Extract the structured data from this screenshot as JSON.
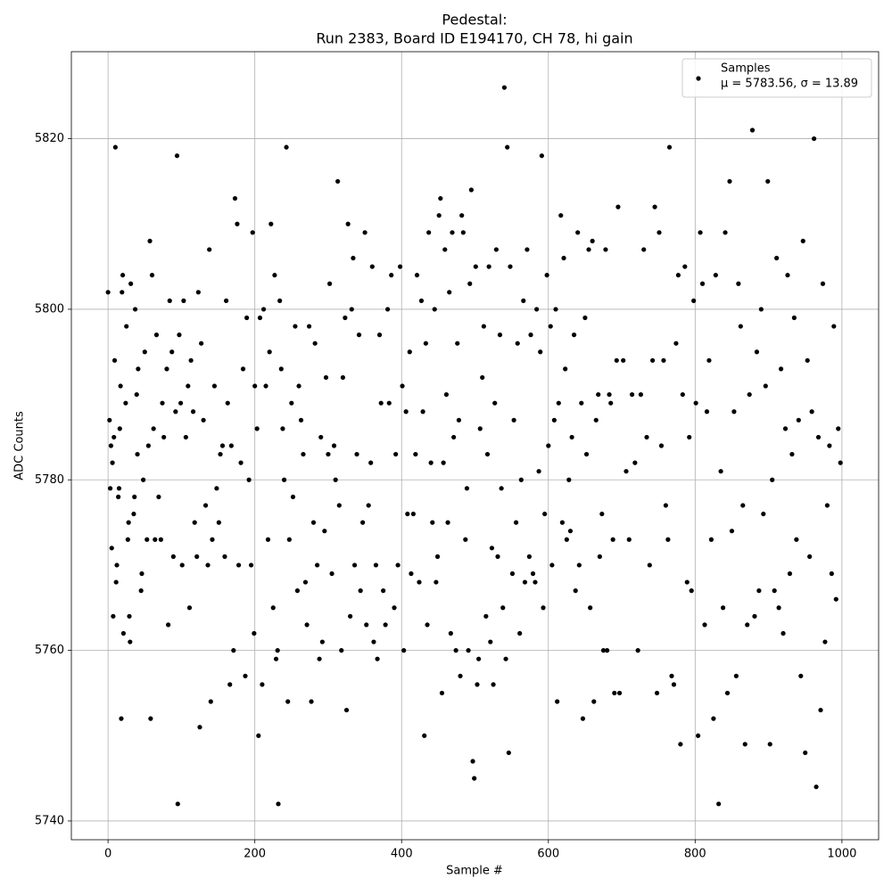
{
  "chart_data": {
    "type": "scatter",
    "title": "Pedestal:",
    "subtitle": "Run 2383, Board ID E194170, CH 78, hi gain",
    "x_label": "Sample #",
    "y_label": "ADC Counts",
    "xlim": [
      -50,
      1050
    ],
    "ylim": [
      5737.8,
      5830.2
    ],
    "xticks": [
      0,
      200,
      400,
      600,
      800,
      1000
    ],
    "yticks": [
      5740,
      5760,
      5780,
      5800,
      5820
    ],
    "grid": true,
    "legend": "upper right",
    "legend_note": "μ = 5783.56, σ = 13.89",
    "x": [
      0,
      2,
      3,
      4,
      5,
      6,
      7,
      8,
      9,
      10,
      11,
      12,
      14,
      15,
      16,
      17,
      18,
      19,
      20,
      21,
      24,
      25,
      27,
      28,
      29,
      30,
      31,
      35,
      36,
      37,
      39,
      40,
      41,
      45,
      46,
      48,
      50,
      53,
      55,
      57,
      58,
      60,
      62,
      64,
      66,
      69,
      72,
      74,
      76,
      80,
      82,
      84,
      87,
      89,
      92,
      94,
      95,
      97,
      99,
      101,
      103,
      106,
      109,
      111,
      113,
      116,
      118,
      121,
      123,
      125,
      127,
      130,
      133,
      136,
      138,
      140,
      142,
      145,
      148,
      151,
      153,
      156,
      159,
      161,
      163,
      166,
      168,
      171,
      173,
      176,
      178,
      181,
      184,
      187,
      189,
      192,
      195,
      197,
      199,
      200,
      203,
      205,
      207,
      210,
      212,
      215,
      218,
      220,
      222,
      225,
      227,
      229,
      231,
      232,
      234,
      236,
      238,
      240,
      243,
      245,
      247,
      250,
      252,
      255,
      258,
      260,
      263,
      266,
      269,
      271,
      274,
      277,
      280,
      282,
      285,
      288,
      290,
      292,
      295,
      297,
      300,
      302,
      305,
      308,
      310,
      313,
      315,
      318,
      320,
      323,
      325,
      327,
      330,
      332,
      334,
      336,
      339,
      342,
      344,
      347,
      350,
      352,
      355,
      358,
      360,
      362,
      365,
      367,
      370,
      372,
      375,
      378,
      381,
      383,
      386,
      390,
      392,
      395,
      398,
      401,
      403,
      406,
      408,
      411,
      413,
      416,
      419,
      421,
      424,
      427,
      429,
      431,
      433,
      435,
      437,
      440,
      442,
      445,
      447,
      449,
      451,
      453,
      455,
      457,
      459,
      461,
      463,
      465,
      467,
      469,
      471,
      474,
      476,
      478,
      480,
      482,
      484,
      487,
      489,
      491,
      493,
      495,
      497,
      499,
      501,
      503,
      505,
      507,
      510,
      512,
      515,
      517,
      519,
      521,
      523,
      525,
      527,
      529,
      531,
      534,
      536,
      538,
      540,
      542,
      544,
      546,
      548,
      551,
      553,
      556,
      558,
      561,
      563,
      566,
      568,
      571,
      574,
      576,
      579,
      582,
      584,
      587,
      589,
      591,
      593,
      595,
      598,
      600,
      603,
      605,
      608,
      610,
      612,
      614,
      617,
      619,
      621,
      623,
      625,
      628,
      630,
      632,
      635,
      637,
      640,
      642,
      645,
      647,
      650,
      652,
      655,
      657,
      660,
      662,
      665,
      668,
      670,
      673,
      675,
      678,
      680,
      683,
      685,
      688,
      690,
      693,
      695,
      697,
      702,
      706,
      710,
      714,
      718,
      722,
      726,
      730,
      734,
      738,
      742,
      745,
      748,
      751,
      754,
      757,
      760,
      763,
      765,
      768,
      771,
      774,
      777,
      780,
      783,
      786,
      789,
      792,
      795,
      798,
      801,
      804,
      807,
      810,
      813,
      816,
      819,
      822,
      825,
      828,
      832,
      835,
      838,
      841,
      844,
      847,
      850,
      853,
      856,
      859,
      862,
      865,
      868,
      871,
      874,
      878,
      881,
      884,
      887,
      890,
      893,
      896,
      899,
      902,
      905,
      908,
      911,
      914,
      917,
      920,
      923,
      926,
      929,
      932,
      935,
      938,
      941,
      944,
      947,
      950,
      953,
      956,
      959,
      962,
      965,
      968,
      971,
      974,
      977,
      980,
      983,
      986,
      989,
      992,
      995,
      998
    ],
    "series": [
      {
        "name": "Samples",
        "color": "#000000",
        "values": [
          5802,
          5787,
          5779,
          5784,
          5772,
          5782,
          5764,
          5785,
          5794,
          5819,
          5768,
          5770,
          5778,
          5779,
          5786,
          5791,
          5752,
          5802,
          5804,
          5762,
          5789,
          5798,
          5773,
          5775,
          5764,
          5761,
          5803,
          5776,
          5778,
          5800,
          5790,
          5783,
          5793,
          5767,
          5769,
          5780,
          5795,
          5773,
          5784,
          5808,
          5752,
          5804,
          5786,
          5773,
          5797,
          5778,
          5773,
          5789,
          5785,
          5793,
          5763,
          5801,
          5795,
          5771,
          5788,
          5818,
          5742,
          5797,
          5789,
          5770,
          5801,
          5785,
          5791,
          5765,
          5794,
          5788,
          5775,
          5771,
          5802,
          5751,
          5796,
          5787,
          5777,
          5770,
          5807,
          5754,
          5773,
          5791,
          5779,
          5775,
          5783,
          5784,
          5771,
          5801,
          5789,
          5756,
          5784,
          5760,
          5813,
          5810,
          5770,
          5782,
          5793,
          5757,
          5799,
          5780,
          5770,
          5809,
          5762,
          5791,
          5786,
          5750,
          5799,
          5756,
          5800,
          5791,
          5773,
          5795,
          5810,
          5765,
          5804,
          5759,
          5760,
          5742,
          5801,
          5793,
          5786,
          5780,
          5819,
          5754,
          5773,
          5789,
          5778,
          5798,
          5767,
          5791,
          5787,
          5783,
          5768,
          5763,
          5798,
          5754,
          5775,
          5796,
          5770,
          5759,
          5785,
          5761,
          5774,
          5792,
          5783,
          5803,
          5769,
          5784,
          5780,
          5815,
          5777,
          5760,
          5792,
          5799,
          5753,
          5810,
          5764,
          5800,
          5806,
          5770,
          5783,
          5797,
          5767,
          5775,
          5809,
          5763,
          5777,
          5782,
          5805,
          5761,
          5770,
          5759,
          5797,
          5789,
          5767,
          5763,
          5800,
          5789,
          5804,
          5765,
          5783,
          5770,
          5805,
          5791,
          5760,
          5788,
          5776,
          5795,
          5769,
          5776,
          5783,
          5804,
          5768,
          5801,
          5788,
          5750,
          5796,
          5763,
          5809,
          5782,
          5775,
          5800,
          5768,
          5771,
          5811,
          5813,
          5755,
          5782,
          5807,
          5790,
          5775,
          5802,
          5762,
          5809,
          5785,
          5760,
          5796,
          5787,
          5757,
          5811,
          5809,
          5773,
          5779,
          5760,
          5803,
          5814,
          5747,
          5745,
          5805,
          5756,
          5759,
          5786,
          5792,
          5798,
          5764,
          5783,
          5805,
          5761,
          5772,
          5756,
          5789,
          5807,
          5771,
          5797,
          5779,
          5765,
          5826,
          5759,
          5819,
          5748,
          5805,
          5769,
          5787,
          5775,
          5796,
          5762,
          5780,
          5801,
          5768,
          5807,
          5771,
          5797,
          5769,
          5768,
          5800,
          5781,
          5795,
          5818,
          5765,
          5776,
          5804,
          5784,
          5798,
          5770,
          5787,
          5800,
          5754,
          5789,
          5811,
          5775,
          5806,
          5793,
          5773,
          5780,
          5774,
          5785,
          5797,
          5767,
          5809,
          5770,
          5789,
          5752,
          5799,
          5783,
          5807,
          5765,
          5808,
          5754,
          5787,
          5790,
          5771,
          5776,
          5760,
          5807,
          5760,
          5790,
          5789,
          5773,
          5755,
          5794,
          5812,
          5755,
          5794,
          5781,
          5773,
          5790,
          5782,
          5760,
          5790,
          5807,
          5785,
          5770,
          5794,
          5812,
          5755,
          5809,
          5784,
          5794,
          5777,
          5773,
          5819,
          5757,
          5756,
          5796,
          5804,
          5749,
          5790,
          5805,
          5768,
          5785,
          5767,
          5801,
          5789,
          5750,
          5809,
          5803,
          5763,
          5788,
          5794,
          5773,
          5752,
          5804,
          5742,
          5781,
          5765,
          5809,
          5755,
          5815,
          5774,
          5788,
          5757,
          5803,
          5798,
          5777,
          5749,
          5763,
          5790,
          5821,
          5764,
          5795,
          5767,
          5800,
          5776,
          5791,
          5815,
          5749,
          5780,
          5767,
          5806,
          5765,
          5793,
          5762,
          5786,
          5804,
          5769,
          5783,
          5799,
          5773,
          5787,
          5757,
          5808,
          5748,
          5794,
          5771,
          5788,
          5820,
          5744,
          5785,
          5753,
          5803,
          5761,
          5777,
          5784,
          5769,
          5798,
          5766,
          5786,
          5782
        ]
      }
    ]
  }
}
